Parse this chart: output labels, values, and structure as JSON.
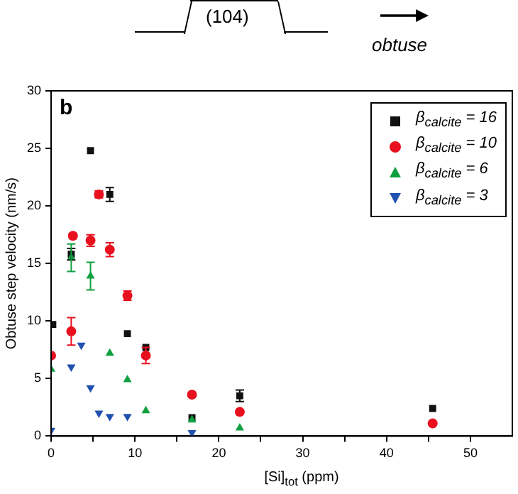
{
  "chart_data": {
    "type": "scatter",
    "xlabel": "[Si]$_{tot}$ (ppm)",
    "ylabel": "Obtuse step velocity (nm/s)",
    "annotations": [
      "b",
      "(104)",
      "obtuse"
    ],
    "xlim": [
      0,
      55
    ],
    "xticks": [
      0,
      {
        "value": 5,
        "label": null
      },
      10,
      {
        "value": 15,
        "label": null
      },
      20,
      {
        "value": 25,
        "label": null
      },
      30,
      {
        "value": 35,
        "label": null
      },
      40,
      {
        "value": 45,
        "label": null
      },
      50
    ],
    "ylim": [
      0,
      30
    ],
    "yticks": [
      0,
      5,
      10,
      15,
      20,
      25,
      30
    ],
    "grid": false,
    "legend": "top right",
    "series": [
      {
        "name": "β$_{calcite}$ = 16",
        "color": "#111111",
        "marker": "square",
        "x": [
          0.2,
          2.4,
          4.7,
          7.0,
          9.1,
          11.3,
          16.8,
          22.5,
          45.5
        ],
        "values": [
          9.7,
          15.8,
          24.8,
          21.0,
          8.9,
          7.7,
          1.6,
          3.5,
          2.4
        ],
        "errors": [
          null,
          0.5,
          null,
          0.6,
          null,
          null,
          null,
          0.5,
          null
        ]
      },
      {
        "name": "β$_{calcite}$ = 10",
        "color": "#e8101e",
        "marker": "circle",
        "x": [
          0,
          2.4,
          2.6,
          4.7,
          5.7,
          7.0,
          9.1,
          11.3,
          16.8,
          22.5,
          45.5
        ],
        "values": [
          7.0,
          9.1,
          17.4,
          17.0,
          21.0,
          16.2,
          12.2,
          7.0,
          3.6,
          2.1,
          1.1
        ],
        "errors": [
          null,
          1.2,
          null,
          0.5,
          0.3,
          0.6,
          0.4,
          0.7,
          null,
          null,
          null
        ]
      },
      {
        "name": "β$_{calcite}$ = 6",
        "color": "#10a040",
        "marker": "triangle",
        "x": [
          0,
          2.4,
          4.7,
          7.0,
          9.1,
          11.3,
          16.8,
          22.5
        ],
        "values": [
          5.8,
          15.5,
          13.9,
          7.2,
          4.9,
          2.2,
          1.4,
          0.7
        ],
        "errors": [
          null,
          1.2,
          1.2,
          null,
          null,
          null,
          null,
          null
        ]
      },
      {
        "name": "β$_{calcite}$ = 3",
        "color": "#2050b0",
        "marker": "triangle-down",
        "x": [
          0,
          2.4,
          3.6,
          4.7,
          5.7,
          7.0,
          9.1,
          16.8
        ],
        "values": [
          0.5,
          6.0,
          7.9,
          4.2,
          2.0,
          1.7,
          1.7,
          0.3
        ]
      }
    ]
  }
}
